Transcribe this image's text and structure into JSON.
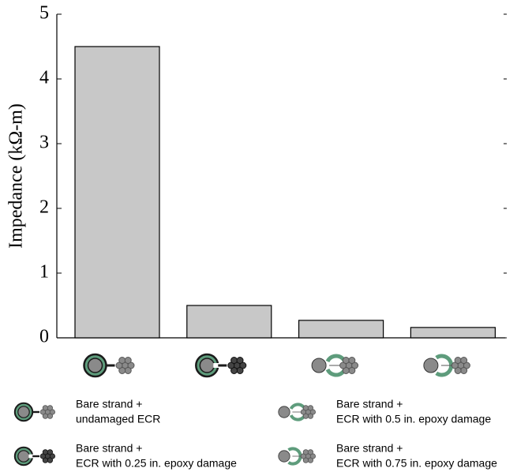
{
  "chart_data": {
    "type": "bar",
    "y_label": "Impedance (kΩ-m)",
    "categories": [
      null,
      null,
      null,
      null
    ],
    "values": [
      4.5,
      0.5,
      0.27,
      0.16
    ],
    "color": "#c8c8c8",
    "ylim": [
      0,
      5
    ],
    "yticks": [
      0,
      1,
      2,
      3,
      4,
      5
    ],
    "legend": [
      [
        "Bare strand +",
        "undamaged ECR"
      ],
      [
        "Bare strand +",
        "ECR with 0.25 in. epoxy damage"
      ],
      [
        "Bare strand +",
        "ECR with 0.5 in. epoxy damage"
      ],
      [
        "Bare strand +",
        "ECR with 0.75 in. epoxy damage"
      ]
    ]
  }
}
